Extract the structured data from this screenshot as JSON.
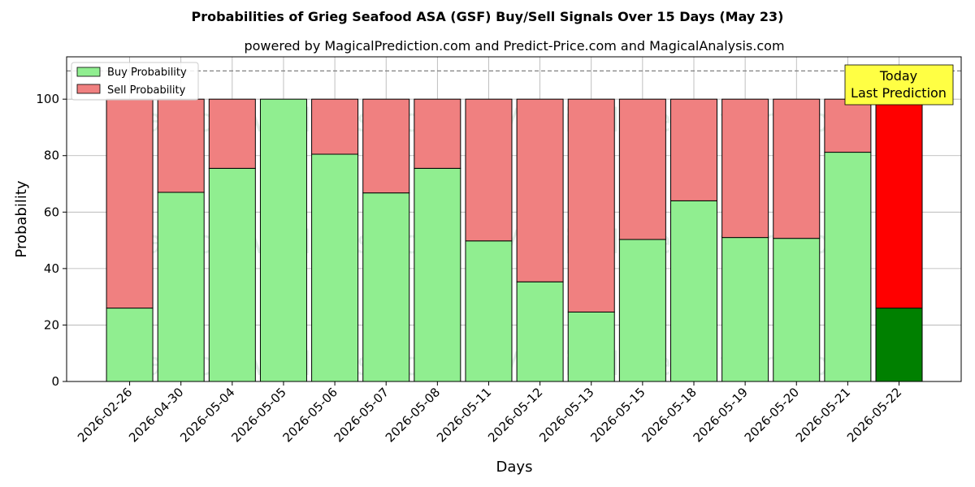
{
  "chart_data": {
    "type": "bar",
    "stacked": true,
    "title": "Probabilities of Grieg Seafood ASA (GSF) Buy/Sell Signals Over 15 Days (May 23)",
    "subtitle": "powered by MagicalPrediction.com and Predict-Price.com and MagicalAnalysis.com",
    "xlabel": "Days",
    "ylabel": "Probability",
    "ylim": [
      0,
      115
    ],
    "yticks": [
      0,
      20,
      40,
      60,
      80,
      100
    ],
    "grid": true,
    "legend_position": "top-left",
    "categories": [
      "2026-02-26",
      "2026-04-30",
      "2026-05-04",
      "2026-05-05",
      "2026-05-06",
      "2026-05-07",
      "2026-05-08",
      "2026-05-11",
      "2026-05-12",
      "2026-05-13",
      "2026-05-15",
      "2026-05-18",
      "2026-05-19",
      "2026-05-20",
      "2026-05-21",
      "2026-05-22"
    ],
    "series": [
      {
        "name": "Buy Probability",
        "color": "#90ee90",
        "values": [
          26,
          67,
          75.5,
          100,
          80.5,
          66.8,
          75.5,
          49.8,
          35.3,
          24.6,
          50.3,
          64,
          51,
          50.7,
          81.2,
          26
        ]
      },
      {
        "name": "Sell Probability",
        "color": "#f08080",
        "values": [
          74,
          33,
          24.5,
          0,
          19.5,
          33.2,
          24.5,
          50.2,
          64.7,
          75.4,
          49.7,
          36,
          49,
          49.3,
          18.8,
          74
        ]
      }
    ],
    "highlight": {
      "index": 15,
      "buy_color": "#008000",
      "sell_color": "#ff0000"
    },
    "reference_line": {
      "y": 110,
      "style": "dashed",
      "color": "#808080"
    },
    "annotation": {
      "lines": [
        "Today",
        "Last Prediction"
      ],
      "background": "#ffff44"
    },
    "watermarks": [
      "MagicalAnalysis.com",
      "MagicalPrediction.com"
    ]
  }
}
